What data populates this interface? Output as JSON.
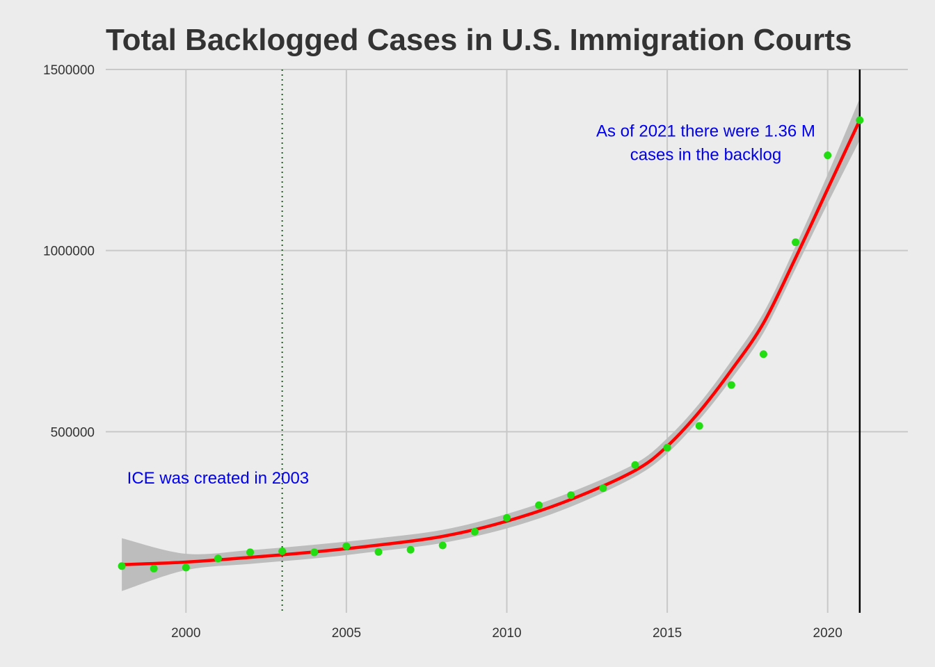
{
  "chart_data": {
    "type": "scatter",
    "title": "Total Backlogged Cases in U.S. Immigration Courts",
    "xlabel": "",
    "ylabel": "",
    "xlim": [
      1997.5,
      2022.5
    ],
    "ylim": [
      0,
      1500000
    ],
    "x_ticks": [
      2000,
      2005,
      2010,
      2015,
      2020
    ],
    "y_ticks": [
      500000,
      1000000,
      1500000
    ],
    "grid": true,
    "colors": {
      "background": "#ececec",
      "grid": "#c8c8c8",
      "points": "#22dd11",
      "trend": "#ff0000",
      "confidence_band": "#bdbdbd",
      "vline_2003": "#1a5c1a",
      "vline_2021": "#000000",
      "annotation_text": "#0000ee",
      "title_text": "#333333"
    },
    "points": [
      {
        "x": 1998,
        "y": 129000
      },
      {
        "x": 1999,
        "y": 122000
      },
      {
        "x": 2000,
        "y": 125000
      },
      {
        "x": 2001,
        "y": 150000
      },
      {
        "x": 2002,
        "y": 167000
      },
      {
        "x": 2003,
        "y": 170000
      },
      {
        "x": 2004,
        "y": 167000
      },
      {
        "x": 2005,
        "y": 184000
      },
      {
        "x": 2006,
        "y": 168000
      },
      {
        "x": 2007,
        "y": 174000
      },
      {
        "x": 2008,
        "y": 186000
      },
      {
        "x": 2009,
        "y": 224000
      },
      {
        "x": 2010,
        "y": 262000
      },
      {
        "x": 2011,
        "y": 297000
      },
      {
        "x": 2012,
        "y": 325000
      },
      {
        "x": 2013,
        "y": 344000
      },
      {
        "x": 2014,
        "y": 408000
      },
      {
        "x": 2015,
        "y": 456000
      },
      {
        "x": 2016,
        "y": 516000
      },
      {
        "x": 2017,
        "y": 629000
      },
      {
        "x": 2018,
        "y": 714000
      },
      {
        "x": 2019,
        "y": 1023000
      },
      {
        "x": 2020,
        "y": 1263000
      },
      {
        "x": 2021,
        "y": 1360000
      }
    ],
    "trend": {
      "x": [
        1998,
        2000,
        2002,
        2004,
        2006,
        2008,
        2010,
        2012,
        2014,
        2015,
        2016,
        2017,
        2018,
        2019,
        2020,
        2021
      ],
      "y": [
        133000,
        140000,
        153000,
        168000,
        187000,
        211000,
        253000,
        313000,
        393000,
        460000,
        555000,
        670000,
        800000,
        980000,
        1170000,
        1360000
      ],
      "ci_lower": [
        60000,
        118000,
        135000,
        150000,
        170000,
        193000,
        233000,
        293000,
        376000,
        440000,
        533000,
        645000,
        773000,
        950000,
        1130000,
        1305000
      ],
      "ci_upper": [
        206000,
        163000,
        173000,
        188000,
        206000,
        229000,
        273000,
        333000,
        412000,
        482000,
        578000,
        696000,
        828000,
        1012000,
        1210000,
        1420000
      ]
    },
    "reference_lines": [
      {
        "x": 2003,
        "style": "dotted"
      },
      {
        "x": 2021,
        "style": "solid"
      }
    ],
    "annotations": [
      {
        "x": 2001,
        "y": 357000,
        "lines": [
          "ICE was created in 2003"
        ]
      },
      {
        "x": 2016.2,
        "y": 1315000,
        "lines": [
          "As of 2021 there were 1.36 M",
          "cases in the backlog"
        ]
      }
    ]
  }
}
